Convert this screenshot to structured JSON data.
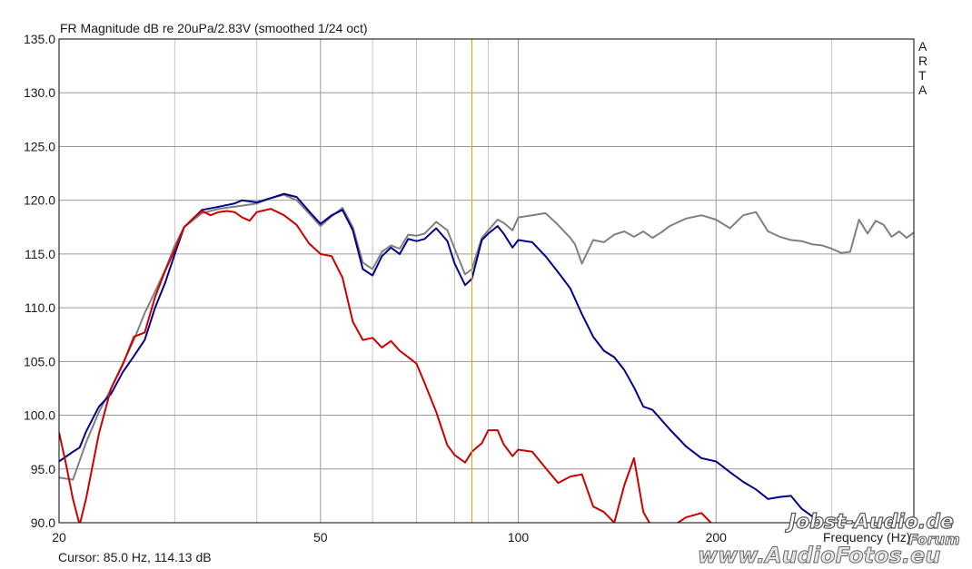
{
  "chart_data": {
    "type": "line",
    "title": "FR Magnitude dB re 20uPa/2.83V (smoothed 1/24 oct)",
    "xlabel": "Frequency (Hz)",
    "ylabel": "",
    "xscale": "log",
    "xlim": [
      20,
      400
    ],
    "ylim": [
      90,
      135
    ],
    "grid": true,
    "x_ticks": [
      20,
      50,
      100,
      200
    ],
    "x_tick_labels": [
      "20",
      "50",
      "100",
      "200"
    ],
    "y_ticks": [
      90,
      95,
      100,
      105,
      110,
      115,
      120,
      125,
      130,
      135
    ],
    "y_tick_labels": [
      "90.0",
      "95.0",
      "100.0",
      "105.0",
      "110.0",
      "115.0",
      "120.0",
      "125.0",
      "130.0",
      "135.0"
    ],
    "cursor": {
      "x": 85.0,
      "label": "Cursor: 85.0 Hz, 114.13 dB",
      "color": "#d4a800"
    },
    "side_label": [
      "A",
      "R",
      "T",
      "A"
    ],
    "watermark": [
      "Jobst-Audio.de",
      "Forum",
      "www.AudioFotos.eu"
    ],
    "series": [
      {
        "color": "#808080",
        "x": [
          20,
          21,
          22,
          23,
          24,
          25,
          26,
          27,
          28,
          29,
          30,
          31,
          33,
          35,
          38,
          40,
          42,
          44,
          46,
          48,
          50,
          52,
          54,
          56,
          58,
          60,
          62,
          64,
          66,
          68,
          70,
          72,
          75,
          78,
          80,
          83,
          85,
          88,
          90,
          93,
          95,
          98,
          100,
          105,
          110,
          115,
          120,
          122,
          125,
          130,
          135,
          140,
          145,
          150,
          155,
          160,
          165,
          170,
          180,
          190,
          200,
          210,
          220,
          230,
          240,
          250,
          260,
          270,
          280,
          290,
          300,
          310,
          320,
          330,
          340,
          350,
          360,
          370,
          380,
          390,
          400
        ],
        "y": [
          94.2,
          94.0,
          97.5,
          100.3,
          102.5,
          104.8,
          107.0,
          109.5,
          111.5,
          113.5,
          115.8,
          117.5,
          118.8,
          119.2,
          119.5,
          119.7,
          120.2,
          120.5,
          120.0,
          118.8,
          117.6,
          118.5,
          119.3,
          117.5,
          114.2,
          113.6,
          115.2,
          115.8,
          115.5,
          116.8,
          116.7,
          116.9,
          118.0,
          117.2,
          115.5,
          113.1,
          113.6,
          116.5,
          117.2,
          118.2,
          117.9,
          117.2,
          118.4,
          118.6,
          118.8,
          117.7,
          116.5,
          115.9,
          114.1,
          116.3,
          116.1,
          116.8,
          117.1,
          116.6,
          117.1,
          116.5,
          117.0,
          117.6,
          118.3,
          118.6,
          118.2,
          117.4,
          118.6,
          118.9,
          117.1,
          116.6,
          116.3,
          116.2,
          115.9,
          115.8,
          115.5,
          115.1,
          115.2,
          118.2,
          116.9,
          118.1,
          117.7,
          116.6,
          117.1,
          116.5,
          117.0
        ]
      },
      {
        "color": "#00008b",
        "x": [
          20,
          21,
          21.5,
          22,
          23,
          24,
          25,
          26,
          27,
          28,
          29,
          30,
          31,
          33,
          35,
          37,
          38,
          40,
          42,
          44,
          46,
          48,
          50,
          52,
          54,
          56,
          58,
          60,
          62,
          64,
          66,
          68,
          70,
          72,
          75,
          78,
          80,
          83,
          85,
          88,
          90,
          93,
          95,
          98,
          100,
          105,
          110,
          115,
          120,
          125,
          130,
          135,
          140,
          145,
          150,
          155,
          160,
          170,
          180,
          190,
          200,
          210,
          220,
          230,
          240,
          250,
          260,
          270,
          280,
          290
        ],
        "y": [
          95.7,
          96.6,
          97.0,
          98.5,
          100.8,
          102.0,
          104.0,
          105.5,
          107.0,
          110.0,
          112.3,
          115.0,
          117.5,
          119.1,
          119.4,
          119.7,
          120.0,
          119.8,
          120.2,
          120.6,
          120.3,
          119.0,
          117.8,
          118.6,
          119.1,
          117.2,
          113.6,
          113.0,
          114.8,
          115.6,
          115.0,
          116.4,
          116.2,
          116.4,
          117.4,
          116.2,
          114.1,
          112.1,
          112.7,
          116.3,
          116.9,
          117.6,
          116.9,
          115.6,
          116.3,
          116.1,
          114.8,
          113.3,
          111.8,
          109.4,
          107.3,
          106.0,
          105.4,
          104.2,
          102.6,
          100.8,
          100.5,
          98.7,
          97.1,
          96.0,
          95.7,
          94.7,
          93.8,
          93.1,
          92.2,
          92.4,
          92.5,
          91.3,
          90.6,
          90.3
        ]
      },
      {
        "color": "#cc0000",
        "x": [
          20,
          20.5,
          21,
          21.5,
          22,
          23,
          24,
          25,
          26,
          27,
          28,
          29,
          30,
          31,
          32,
          33,
          34,
          35,
          36,
          37,
          38,
          39,
          40,
          42,
          44,
          46,
          48,
          50,
          52,
          54,
          56,
          58,
          60,
          62,
          64,
          66,
          68,
          70,
          72,
          75,
          78,
          80,
          83,
          85,
          88,
          90,
          93,
          95,
          98,
          100,
          105,
          110,
          115,
          120,
          125,
          130,
          135,
          140,
          145,
          150,
          155,
          160,
          170,
          180,
          190,
          200
        ],
        "y": [
          98.4,
          95.4,
          92.2,
          89.8,
          92.3,
          98.3,
          102.5,
          104.7,
          107.3,
          107.7,
          111.0,
          113.4,
          115.4,
          117.5,
          118.3,
          119.0,
          118.6,
          118.9,
          119.0,
          118.9,
          118.4,
          118.1,
          118.9,
          119.2,
          118.6,
          117.7,
          116.0,
          115.0,
          114.8,
          112.8,
          108.7,
          107.0,
          107.2,
          106.3,
          106.9,
          106.0,
          105.4,
          104.8,
          103.0,
          100.3,
          97.2,
          96.3,
          95.6,
          96.6,
          97.4,
          98.6,
          98.6,
          97.3,
          96.2,
          96.8,
          96.6,
          95.1,
          93.7,
          94.3,
          94.5,
          91.5,
          91.0,
          90.0,
          93.5,
          96.0,
          91.0,
          89.5,
          89.5,
          90.5,
          90.9,
          89.5
        ]
      }
    ]
  }
}
